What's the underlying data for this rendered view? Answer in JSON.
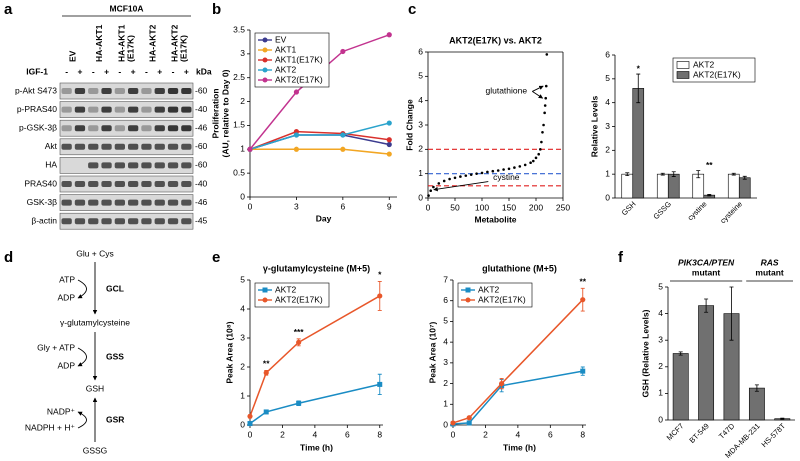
{
  "panel_labels": [
    "a",
    "b",
    "c",
    "d",
    "e",
    "f"
  ],
  "blot": {
    "cell_line": "MCF10A",
    "lane_headers": [
      [
        "EV"
      ],
      [
        "HA-AKT1"
      ],
      [
        "HA-AKT1",
        "(E17K)"
      ],
      [
        "HA-AKT2"
      ],
      [
        "HA-AKT2",
        "(E17K)"
      ]
    ],
    "treatment": "IGF-1",
    "treatment_signs": [
      "-",
      "+",
      "-",
      "+",
      "-",
      "+",
      "-",
      "+",
      "-",
      "+"
    ],
    "kda_header": "kDa",
    "rows": [
      {
        "label": "p-Akt S473",
        "kda": "-60"
      },
      {
        "label": "p-PRAS40",
        "kda": "-40"
      },
      {
        "label": "p-GSK-3β",
        "kda": "-46"
      },
      {
        "label": "Akt",
        "kda": "-60"
      },
      {
        "label": "HA",
        "kda": "-60"
      },
      {
        "label": "PRAS40",
        "kda": "-40"
      },
      {
        "label": "GSK-3β",
        "kda": "-46"
      },
      {
        "label": "β-actin",
        "kda": "-45"
      }
    ]
  },
  "pathway": {
    "substrate": "Glu + Cys",
    "gcl": {
      "enzyme": "GCL",
      "in": "ATP",
      "out": "ADP"
    },
    "intermediate": "γ-glutamylcysteine",
    "gss": {
      "enzyme": "GSS",
      "in": "Gly + ATP",
      "out": "ADP"
    },
    "product": "GSH",
    "gsr": {
      "enzyme": "GSR",
      "in": "NADPH + H⁺",
      "out": "NADP⁺"
    },
    "oxidized": "GSSG"
  },
  "chart_data": [
    {
      "type": "line",
      "ylabel": [
        "Proliferation",
        "(AU, relative to Day 0)"
      ],
      "xlabel": "Day",
      "x": [
        0,
        3,
        6,
        9
      ],
      "xlim": [
        0,
        9.5
      ],
      "xticks": [
        0,
        3,
        6,
        9
      ],
      "ylim": [
        0,
        3.5
      ],
      "yticks": [
        0,
        0.5,
        1,
        1.5,
        2,
        2.5,
        3,
        3.5
      ],
      "legend": "upper left",
      "series": [
        {
          "name": "EV",
          "color": "#3b3b8f",
          "marker": "circle",
          "values": [
            1,
            1.3,
            1.3,
            1.1
          ]
        },
        {
          "name": "AKT1",
          "color": "#f2a623",
          "marker": "circle",
          "values": [
            1,
            1.0,
            1.0,
            0.9
          ]
        },
        {
          "name": "AKT1(E17K)",
          "color": "#d9302c",
          "marker": "circle",
          "values": [
            1,
            1.37,
            1.33,
            1.2
          ]
        },
        {
          "name": "AKT2",
          "color": "#2aa3cc",
          "marker": "circle",
          "values": [
            1,
            1.3,
            1.3,
            1.55
          ]
        },
        {
          "name": "AKT2(E17K)",
          "color": "#c2338f",
          "marker": "circle",
          "values": [
            1,
            2.2,
            3.05,
            3.4
          ]
        }
      ]
    },
    {
      "type": "scatter",
      "title": "AKT2(E17K) vs. AKT2",
      "ylabel": "Fold Change",
      "xlabel": "Metabolite",
      "box": true,
      "x": [
        1,
        5,
        10,
        20,
        30,
        40,
        50,
        60,
        70,
        80,
        90,
        100,
        110,
        120,
        130,
        140,
        150,
        160,
        170,
        180,
        190,
        195,
        200,
        205,
        208,
        210,
        212,
        214,
        216,
        217,
        218,
        219,
        220
      ],
      "series": [
        {
          "color": "#000000",
          "values": [
            0.1,
            0.3,
            0.45,
            0.6,
            0.7,
            0.78,
            0.83,
            0.88,
            0.92,
            0.96,
            1.0,
            1.03,
            1.07,
            1.1,
            1.13,
            1.17,
            1.2,
            1.25,
            1.3,
            1.36,
            1.45,
            1.52,
            1.65,
            1.8,
            2.0,
            2.3,
            2.7,
            3.0,
            3.5,
            3.8,
            4.1,
            4.6,
            5.9
          ]
        }
      ],
      "xlim": [
        0,
        250
      ],
      "xticks": [
        0,
        50,
        100,
        150,
        200,
        250
      ],
      "ylim": [
        0,
        6
      ],
      "yticks": [
        0,
        1,
        2,
        3,
        4,
        5,
        6
      ],
      "hlines": [
        {
          "value": 2,
          "color": "#e02020"
        },
        {
          "value": 1,
          "color": "#3060d0"
        },
        {
          "value": 0.5,
          "color": "#e02020"
        }
      ],
      "annotations": [
        {
          "text": "glutathione"
        },
        {
          "text": "cystine"
        }
      ]
    },
    {
      "type": "bar",
      "ylabel": "Relative Levels",
      "categories": [
        "GSH",
        "GSSG",
        "cystine",
        "cysteine"
      ],
      "series": [
        {
          "name": "AKT2",
          "color": "#ffffff",
          "values": [
            1,
            1,
            1,
            1
          ],
          "errors": [
            0.06,
            0.04,
            0.15,
            0.04
          ]
        },
        {
          "name": "AKT2(E17K)",
          "color": "#707070",
          "values": [
            4.6,
            1.0,
            0.12,
            0.85
          ],
          "errors": [
            0.6,
            0.1,
            0.03,
            0.06
          ]
        }
      ],
      "ylim": [
        0,
        6
      ],
      "yticks": [
        0,
        1,
        2,
        3,
        4,
        5,
        6
      ],
      "significance": [
        "*",
        null,
        "**",
        null
      ],
      "legend": "upper right"
    },
    {
      "type": "line",
      "title": "γ-glutamylcysteine (M+5)",
      "ylabel": "Peak Area (10⁸)",
      "xlabel": "Time (h)",
      "x": [
        0,
        1,
        3,
        8
      ],
      "xlim": [
        0,
        8.2
      ],
      "xticks": [
        0,
        2,
        4,
        6,
        8
      ],
      "ylim": [
        0,
        5
      ],
      "yticks": [
        0,
        1,
        2,
        3,
        4,
        5
      ],
      "legend": "upper left",
      "significance": [
        null,
        "**",
        "***",
        "*"
      ],
      "series": [
        {
          "name": "AKT2",
          "color": "#1a8cc4",
          "marker": "square",
          "values": [
            0.05,
            0.45,
            0.75,
            1.4
          ],
          "errors": [
            0.02,
            0.05,
            0.08,
            0.35
          ]
        },
        {
          "name": "AKT2(E17K)",
          "color": "#e8572a",
          "marker": "circle",
          "values": [
            0.3,
            1.8,
            2.85,
            4.45
          ],
          "errors": [
            0.05,
            0.08,
            0.12,
            0.5
          ]
        }
      ]
    },
    {
      "type": "line",
      "title": "glutathione (M+5)",
      "ylabel": "Peak Area (10⁷)",
      "xlabel": "Time (h)",
      "x": [
        0,
        1,
        3,
        8
      ],
      "xlim": [
        0,
        8.2
      ],
      "xticks": [
        0,
        2,
        4,
        6,
        8
      ],
      "ylim": [
        0,
        7
      ],
      "yticks": [
        0,
        1,
        2,
        3,
        4,
        5,
        6,
        7
      ],
      "legend": "upper left",
      "significance": [
        null,
        null,
        null,
        "**"
      ],
      "series": [
        {
          "name": "AKT2",
          "color": "#1a8cc4",
          "marker": "square",
          "values": [
            0.05,
            0.1,
            1.9,
            2.6
          ],
          "errors": [
            0.02,
            0.05,
            0.3,
            0.2
          ]
        },
        {
          "name": "AKT2(E17K)",
          "color": "#e8572a",
          "marker": "circle",
          "values": [
            0.1,
            0.35,
            2.0,
            6.05
          ],
          "errors": [
            0.02,
            0.05,
            0.25,
            0.55
          ]
        }
      ]
    },
    {
      "type": "bar",
      "ylabel": "GSH (Relative Levels)",
      "categories": [
        "MCF7",
        "BT-549",
        "T47D",
        "MDA-MB-231",
        "HS-578T"
      ],
      "series": [
        {
          "color": "#707070",
          "values": [
            2.5,
            4.3,
            4.0,
            1.2,
            0.05
          ],
          "errors": [
            0.06,
            0.25,
            1.0,
            0.12,
            0.02
          ]
        }
      ],
      "ylim": [
        0,
        5
      ],
      "yticks": [
        0,
        1,
        2,
        3,
        4,
        5
      ],
      "groups": [
        {
          "label": "PIK3CA/PTEN",
          "sublabel": "mutant",
          "members": [
            "MCF7",
            "BT-549",
            "T47D"
          ]
        },
        {
          "label": "RAS",
          "sublabel": "mutant",
          "members": [
            "MDA-MB-231",
            "HS-578T"
          ]
        }
      ]
    }
  ]
}
